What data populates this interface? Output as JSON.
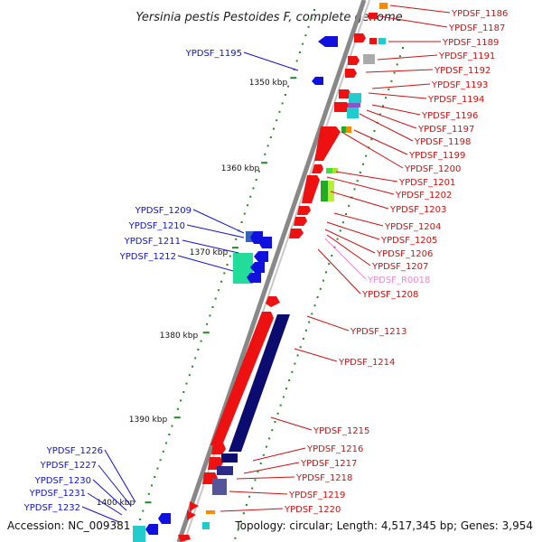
{
  "title": "Yersinia pestis Pestoides F, complete genome",
  "accession": "Accession: NC_009381",
  "topology": "Topology: circular; Length: 4,517,345 bp; Genes: 3,954",
  "scale_labels": [
    "1350 kbp",
    "1360 kbp",
    "1370 kbp",
    "1380 kbp",
    "1390 kbp",
    "1400 kbp"
  ],
  "left_genes": [
    "YPDSF_1195",
    "YPDSF_1209",
    "YPDSF_1210",
    "YPDSF_1211",
    "YPDSF_1212",
    "YPDSF_1226",
    "YPDSF_1227",
    "YPDSF_1230",
    "YPDSF_1231",
    "YPDSF_1232"
  ],
  "right_genes": [
    "YPDSF_1186",
    "YPDSF_1187",
    "YPDSF_1189",
    "YPDSF_1191",
    "YPDSF_1192",
    "YPDSF_1193",
    "YPDSF_1194",
    "YPDSF_1196",
    "YPDSF_1197",
    "YPDSF_1198",
    "YPDSF_1199",
    "YPDSF_1200",
    "YPDSF_1201",
    "YPDSF_1202",
    "YPDSF_1203",
    "YPDSF_1204",
    "YPDSF_1205",
    "YPDSF_1206",
    "YPDSF_1207",
    "YPDSF_R0018",
    "YPDSF_1208",
    "YPDSF_1213",
    "YPDSF_1214",
    "YPDSF_1215",
    "YPDSF_1216",
    "YPDSF_1217",
    "YPDSF_1218",
    "YPDSF_1219",
    "YPDSF_1220"
  ],
  "colors": {
    "forward": "#ee1111",
    "reverse": "#1111dd",
    "rna": "#ee88cc",
    "backbone": "#888888",
    "navy": "#0c0c70"
  }
}
